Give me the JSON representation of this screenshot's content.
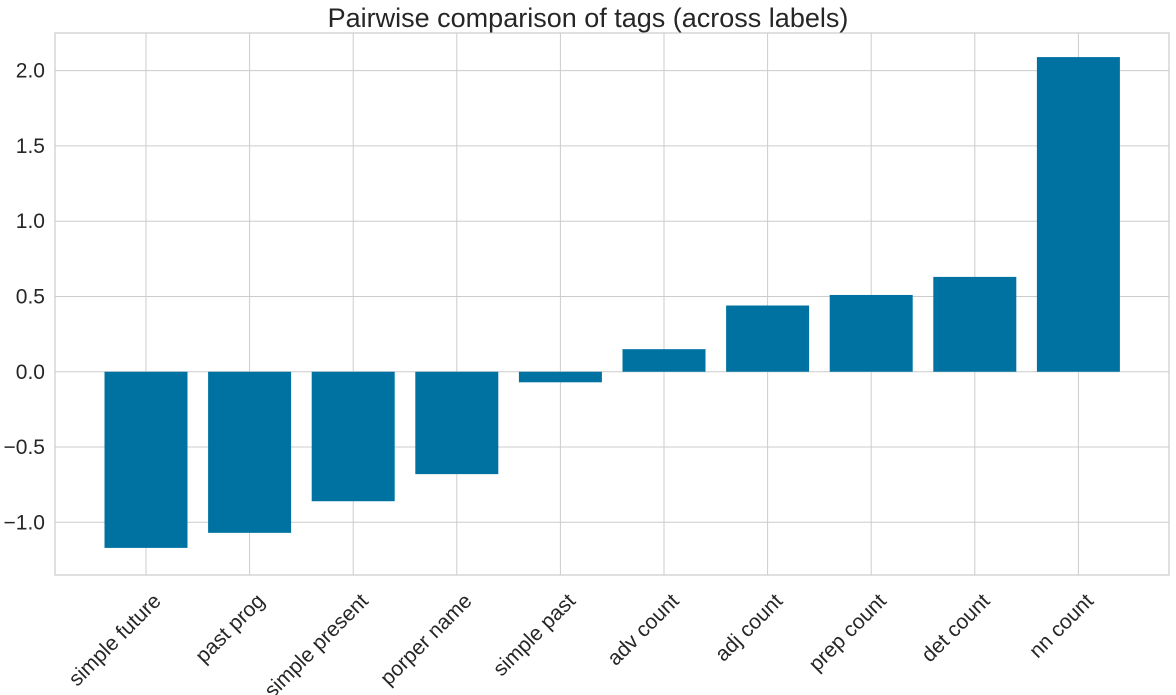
{
  "chart_data": {
    "type": "bar",
    "title": "Pairwise comparison of tags (across labels)",
    "xlabel": "",
    "ylabel": "",
    "categories": [
      "simple future",
      "past prog",
      "simple present",
      "porper name",
      "simple past",
      "adv count",
      "adj count",
      "prep count",
      "det count",
      "nn count"
    ],
    "values": [
      -1.17,
      -1.07,
      -0.86,
      -0.68,
      -0.07,
      0.15,
      0.44,
      0.51,
      0.63,
      2.09
    ],
    "ylim": [
      -1.35,
      2.25
    ],
    "yticks": [
      -1.0,
      -0.5,
      0.0,
      0.5,
      1.0,
      1.5,
      2.0
    ],
    "ytick_labels": [
      "−1.0",
      "−0.5",
      "0.0",
      "0.5",
      "1.0",
      "1.5",
      "2.0"
    ],
    "grid": true,
    "bar_color": "#0072a2",
    "grid_color": "#cccccc"
  }
}
